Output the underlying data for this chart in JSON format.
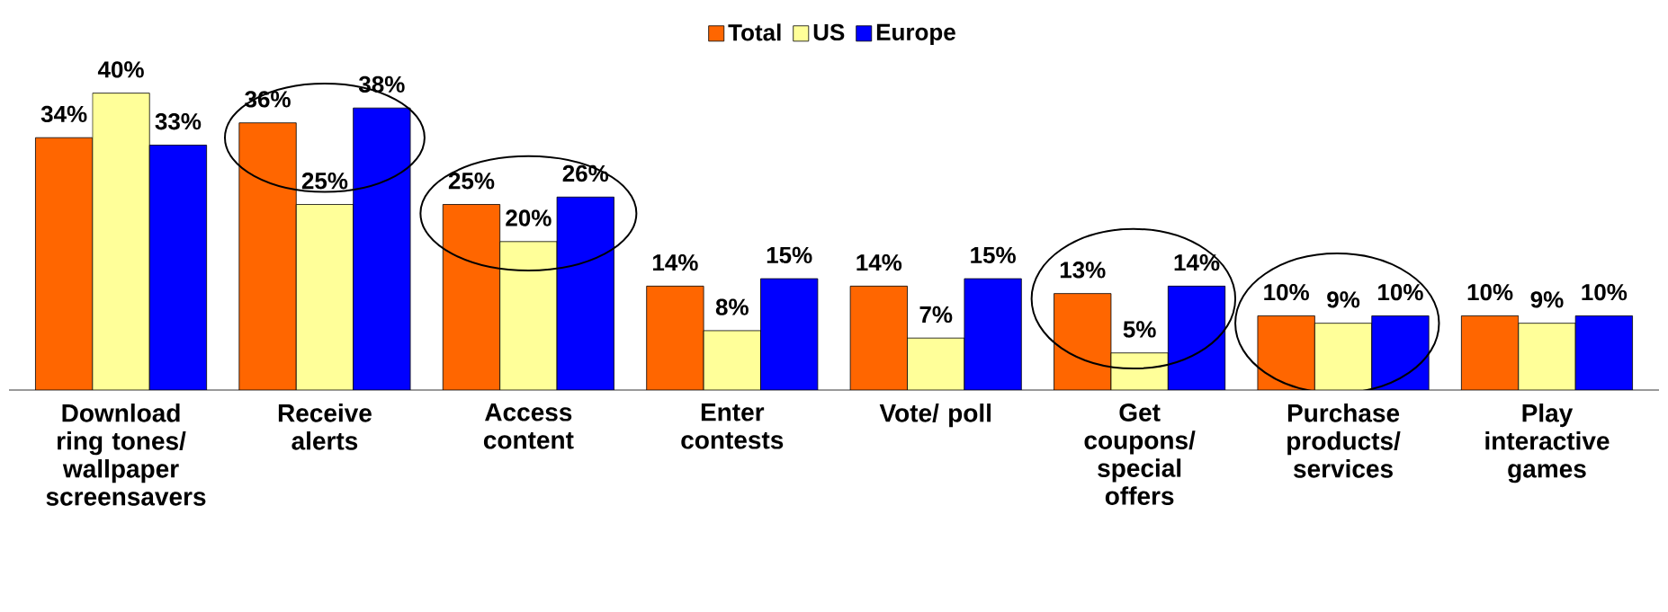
{
  "chart_data": {
    "type": "bar",
    "categories": [
      "Download ring tones/ wallpaper screensavers",
      "Receive alerts",
      "Access content",
      "Enter contests",
      "Vote/ poll",
      "Get coupons/ special offers",
      "Purchase products/ services",
      "Play interactive games"
    ],
    "series": [
      {
        "name": "Total",
        "color": "#ff6600",
        "values": [
          34,
          36,
          25,
          14,
          14,
          13,
          10,
          10
        ],
        "value_labels": [
          "34%",
          "36%",
          "25%",
          "14%",
          "14%",
          "13%",
          "10%",
          "10%"
        ]
      },
      {
        "name": "US",
        "color": "#ffff99",
        "values": [
          40,
          25,
          20,
          8,
          7,
          5,
          9,
          9
        ],
        "value_labels": [
          "40%",
          "25%",
          "20%",
          "8%",
          "7%",
          "5%",
          "9%",
          "9%"
        ]
      },
      {
        "name": "Europe",
        "color": "#0000ff",
        "values": [
          33,
          38,
          26,
          15,
          15,
          14,
          10,
          10
        ],
        "value_labels": [
          "33%",
          "38%",
          "26%",
          "15%",
          "15%",
          "14%",
          "10%",
          "10%"
        ]
      }
    ],
    "legend": "top"
  }
}
